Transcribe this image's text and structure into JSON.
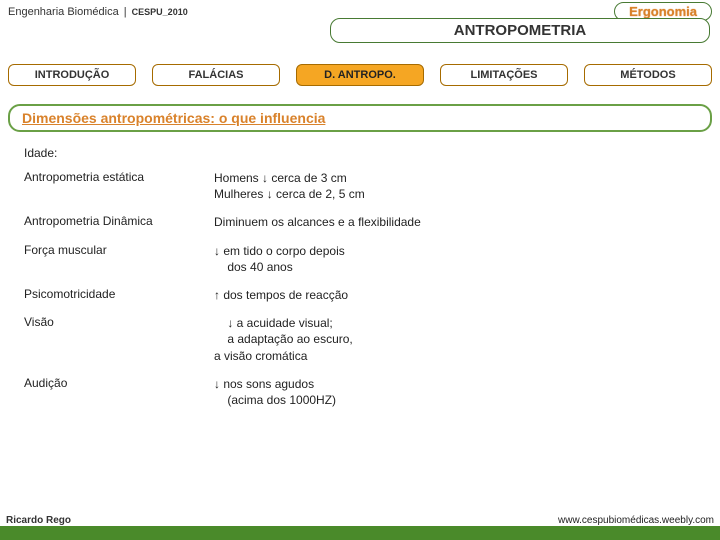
{
  "header": {
    "corner": "Ergonomia",
    "breadcrumb_main": "Engenharia Biomédica",
    "breadcrumb_sep": "|",
    "breadcrumb_small": "CESPU_2010",
    "title": "ANTROPOMETRIA"
  },
  "tabs": {
    "introducao": "INTRODUÇÃO",
    "falacias": "FALÁCIAS",
    "dantropo": "D. ANTROPO.",
    "limitacoes": "LIMITAÇÕES",
    "metodos": "MÉTODOS"
  },
  "section_title": "Dimensões antropométricas: o que influencia",
  "content": {
    "idade_label": "Idade:",
    "rows": [
      {
        "lhs": "Antropometria estática",
        "rhs": "Homens ↓ cerca de 3 cm\nMulheres ↓ cerca de 2, 5 cm"
      },
      {
        "lhs": "Antropometria Dinâmica",
        "rhs": "Diminuem os alcances e a flexibilidade"
      },
      {
        "lhs": "Força muscular",
        "rhs": "↓ em tido o corpo depois dos 40 anos"
      },
      {
        "lhs": "Psicomotricidade",
        "rhs": "↑ dos tempos de reacção"
      },
      {
        "lhs": "Visão",
        "rhs": "↓ a acuidade visual;\na adaptação ao escuro,\na visão cromática"
      },
      {
        "lhs": "Audição",
        "rhs": "↓ nos sons agudos\n(acima dos 1000HZ)"
      }
    ]
  },
  "footer": {
    "left": "Ricardo Rego",
    "right": "www.cespubiomédicas.weebly.com"
  },
  "colors": {
    "green_border": "#487a33",
    "orange_text": "#d9822b",
    "tab_active_bg": "#f5a623",
    "footer_bg": "#4a8a2a"
  }
}
